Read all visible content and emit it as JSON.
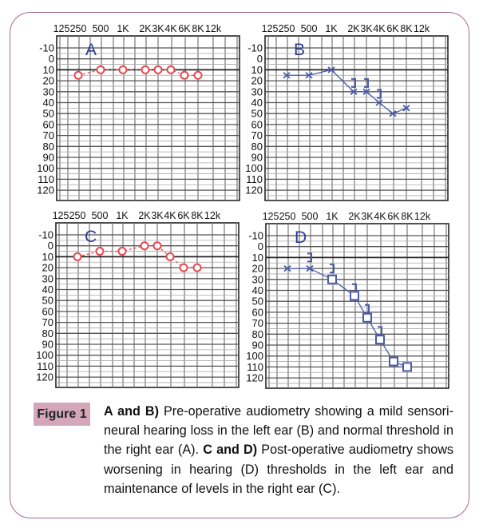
{
  "figure": {
    "label": "Figure 1",
    "caption": {
      "bold1": "A and B)",
      "text1": " Pre-operative audiometry showing a mild sensori-neural hearing loss in the left ear (B) and normal threshold in the right ear (A). ",
      "bold2": "C and D)",
      "text2": " Post-operative audiometry shows worsening in hearing (D) thresholds in the left ear and maintenance of levels in the right ear (C)."
    }
  },
  "colors": {
    "right_ear": "#e8484f",
    "left_ear": "#4a5aa8",
    "panel_letter": "#2e3d8f",
    "frame": "#a8678f",
    "label_bg": "#d3a7b9"
  },
  "chart_data": [
    {
      "type": "line",
      "panel": "A",
      "title": "A",
      "x_ticks": [
        "125",
        "250",
        "500",
        "1K",
        "2K",
        "3K",
        "4K",
        "6K",
        "8K",
        "12k"
      ],
      "y_ticks": [
        "-10",
        "0",
        "10",
        "20",
        "30",
        "40",
        "50",
        "60",
        "70",
        "80",
        "90",
        "100",
        "110",
        "120"
      ],
      "ylim": [
        -10,
        120
      ],
      "y_inverted": true,
      "grid": true,
      "series": [
        {
          "name": "right ear",
          "marker": "circle",
          "style": "dashed",
          "color": "#e8484f",
          "x": [
            "250",
            "500",
            "1K",
            "2K",
            "3K",
            "4K",
            "6K",
            "8K"
          ],
          "y": [
            15,
            10,
            10,
            10,
            10,
            10,
            15,
            15
          ]
        }
      ]
    },
    {
      "type": "line",
      "panel": "B",
      "title": "B",
      "x_ticks": [
        "125",
        "250",
        "500",
        "1K",
        "2K",
        "3K",
        "4K",
        "6K",
        "8K",
        "12k"
      ],
      "y_ticks": [
        "-10",
        "0",
        "10",
        "20",
        "30",
        "40",
        "50",
        "60",
        "70",
        "80",
        "90",
        "100",
        "110",
        "120"
      ],
      "ylim": [
        -10,
        120
      ],
      "y_inverted": true,
      "grid": true,
      "series": [
        {
          "name": "left ear",
          "marker": "x",
          "style": "solid",
          "color": "#4a5aa8",
          "x": [
            "250",
            "500",
            "1K",
            "2K",
            "3K",
            "4K",
            "6K",
            "8K"
          ],
          "y": [
            15,
            15,
            10,
            30,
            30,
            40,
            50,
            45
          ],
          "bone": {
            "x": [
              "2K",
              "3K",
              "4K"
            ],
            "y": [
              22,
              22,
              32
            ]
          }
        }
      ]
    },
    {
      "type": "line",
      "panel": "C",
      "title": "C",
      "x_ticks": [
        "125",
        "250",
        "500",
        "1K",
        "2K",
        "3K",
        "4K",
        "6K",
        "8K",
        "12k"
      ],
      "y_ticks": [
        "-10",
        "0",
        "10",
        "20",
        "30",
        "40",
        "50",
        "60",
        "70",
        "80",
        "90",
        "100",
        "110",
        "120"
      ],
      "ylim": [
        -10,
        120
      ],
      "y_inverted": true,
      "grid": true,
      "series": [
        {
          "name": "right ear",
          "marker": "circle",
          "style": "dashed",
          "color": "#e8484f",
          "x": [
            "250",
            "500",
            "1K",
            "2K",
            "3K",
            "4K",
            "6K",
            "8K"
          ],
          "y": [
            10,
            5,
            5,
            0,
            0,
            10,
            20,
            20
          ]
        }
      ]
    },
    {
      "type": "line",
      "panel": "D",
      "title": "D",
      "x_ticks": [
        "125",
        "250",
        "500",
        "1K",
        "2K",
        "3K",
        "4K",
        "6K",
        "8K",
        "12k"
      ],
      "y_ticks": [
        "-10",
        "0",
        "10",
        "20",
        "30",
        "40",
        "50",
        "60",
        "70",
        "80",
        "90",
        "100",
        "110",
        "120"
      ],
      "ylim": [
        -10,
        120
      ],
      "y_inverted": true,
      "grid": true,
      "series": [
        {
          "name": "left ear",
          "marker": "x",
          "style": "solid",
          "color": "#4a5aa8",
          "x": [
            "250",
            "500",
            "1K"
          ],
          "y": [
            20,
            20,
            30
          ]
        },
        {
          "name": "left ear masked",
          "marker": "square",
          "style": "solid",
          "color": "#4a5aa8",
          "x": [
            "1K",
            "2K",
            "3K",
            "4K",
            "6K",
            "8K"
          ],
          "y": [
            30,
            45,
            65,
            85,
            105,
            110
          ]
        }
      ],
      "bone": {
        "x": [
          "500",
          "1K",
          "2K",
          "3K",
          "4K"
        ],
        "y": [
          10,
          20,
          38,
          57,
          77
        ]
      }
    }
  ]
}
